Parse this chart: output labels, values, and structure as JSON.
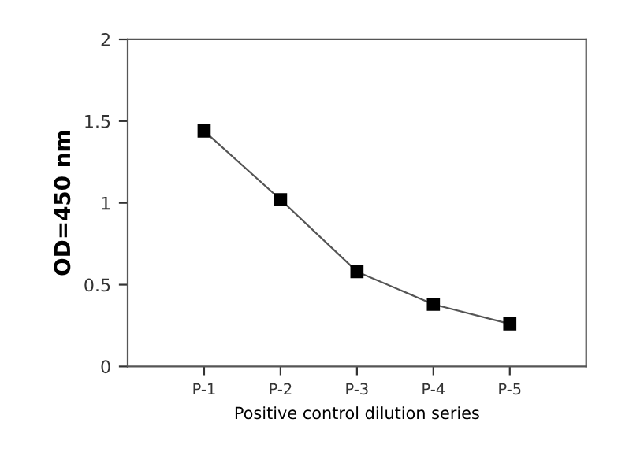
{
  "chart_data": {
    "type": "line",
    "xlabel": "Positive control dilution series",
    "ylabel": "OD=450 nm",
    "categories": [
      "P-1",
      "P-2",
      "P-3",
      "P-4",
      "P-5"
    ],
    "series": [
      {
        "color": "#000000",
        "values": [
          1.44,
          1.02,
          0.58,
          0.38,
          0.26
        ]
      }
    ],
    "ylim": [
      0,
      2
    ],
    "yticks": [
      0,
      0.5,
      1,
      1.5,
      2
    ],
    "marker": "square",
    "line_style": "solid",
    "grid": false,
    "legend": false
  }
}
